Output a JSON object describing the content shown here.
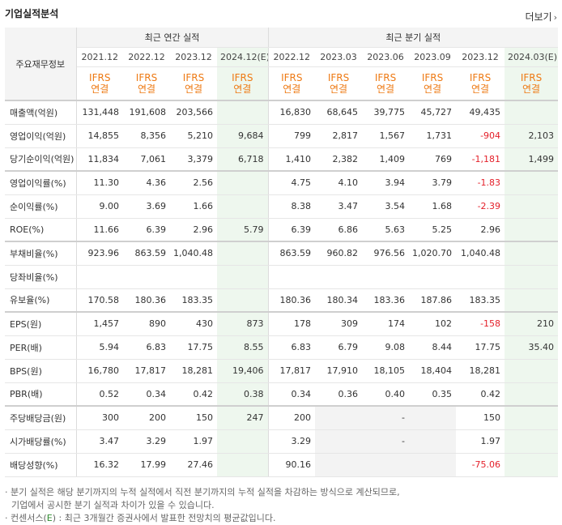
{
  "header": {
    "title": "기업실적분석",
    "more_label": "더보기"
  },
  "table": {
    "label_header": "주요재무정보",
    "annual_group": "최근 연간 실적",
    "quarter_group": "최근 분기 실적",
    "annual_periods": [
      "2021.12",
      "2022.12",
      "2023.12",
      "2024.12(E)"
    ],
    "quarter_periods": [
      "2022.12",
      "2023.03",
      "2023.06",
      "2023.09",
      "2023.12",
      "2024.03(E)"
    ],
    "basis_top": "IFRS",
    "basis_bottom": "연결",
    "rows": [
      {
        "label": "매출액(억원)",
        "a": [
          "131,448",
          "191,608",
          "203,566",
          ""
        ],
        "q": [
          "16,830",
          "68,645",
          "39,775",
          "45,727",
          "49,435",
          ""
        ]
      },
      {
        "label": "영업이익(억원)",
        "a": [
          "14,855",
          "8,356",
          "5,210",
          "9,684"
        ],
        "q": [
          "799",
          "2,817",
          "1,567",
          "1,731",
          "-904",
          "2,103"
        ]
      },
      {
        "label": "당기순이익(억원)",
        "a": [
          "11,834",
          "7,061",
          "3,379",
          "6,718"
        ],
        "q": [
          "1,410",
          "2,382",
          "1,409",
          "769",
          "-1,181",
          "1,499"
        ]
      },
      {
        "label": "영업이익률(%)",
        "a": [
          "11.30",
          "4.36",
          "2.56",
          ""
        ],
        "q": [
          "4.75",
          "4.10",
          "3.94",
          "3.79",
          "-1.83",
          ""
        ]
      },
      {
        "label": "순이익률(%)",
        "a": [
          "9.00",
          "3.69",
          "1.66",
          ""
        ],
        "q": [
          "8.38",
          "3.47",
          "3.54",
          "1.68",
          "-2.39",
          ""
        ]
      },
      {
        "label": "ROE(%)",
        "a": [
          "11.66",
          "6.39",
          "2.96",
          "5.79"
        ],
        "q": [
          "6.39",
          "6.86",
          "5.63",
          "5.25",
          "2.96",
          ""
        ]
      },
      {
        "label": "부채비율(%)",
        "a": [
          "923.96",
          "863.59",
          "1,040.48",
          ""
        ],
        "q": [
          "863.59",
          "960.82",
          "976.56",
          "1,020.70",
          "1,040.48",
          ""
        ]
      },
      {
        "label": "당좌비율(%)",
        "a": [
          "",
          "",
          "",
          ""
        ],
        "q": [
          "",
          "",
          "",
          "",
          "",
          ""
        ]
      },
      {
        "label": "유보율(%)",
        "a": [
          "170.58",
          "180.36",
          "183.35",
          ""
        ],
        "q": [
          "180.36",
          "180.34",
          "183.36",
          "187.86",
          "183.35",
          ""
        ]
      },
      {
        "label": "EPS(원)",
        "a": [
          "1,457",
          "890",
          "430",
          "873"
        ],
        "q": [
          "178",
          "309",
          "174",
          "102",
          "-158",
          "210"
        ]
      },
      {
        "label": "PER(배)",
        "a": [
          "5.94",
          "6.83",
          "17.75",
          "8.55"
        ],
        "q": [
          "6.83",
          "6.79",
          "9.08",
          "8.44",
          "17.75",
          "35.40"
        ]
      },
      {
        "label": "BPS(원)",
        "a": [
          "16,780",
          "17,817",
          "18,281",
          "19,406"
        ],
        "q": [
          "17,817",
          "17,910",
          "18,105",
          "18,404",
          "18,281",
          ""
        ]
      },
      {
        "label": "PBR(배)",
        "a": [
          "0.52",
          "0.34",
          "0.42",
          "0.38"
        ],
        "q": [
          "0.34",
          "0.36",
          "0.40",
          "0.35",
          "0.42",
          ""
        ]
      },
      {
        "label": "주당배당금(원)",
        "a": [
          "300",
          "200",
          "150",
          "247"
        ],
        "q": [
          "200",
          "",
          "-",
          "",
          "150",
          ""
        ]
      },
      {
        "label": "시가배당률(%)",
        "a": [
          "3.47",
          "3.29",
          "1.97",
          ""
        ],
        "q": [
          "3.29",
          "",
          "-",
          "",
          "1.97",
          ""
        ]
      },
      {
        "label": "배당성향(%)",
        "a": [
          "16.32",
          "17.99",
          "27.46",
          ""
        ],
        "q": [
          "90.16",
          "",
          "",
          "",
          "-75.06",
          ""
        ]
      }
    ]
  },
  "notes": {
    "line1": "· 분기 실적은 해당 분기까지의 누적 실적에서 직전 분기까지의 누적 실적을 차감하는 방식으로 계산되므로,",
    "line2": "기업에서 공시한 분기 실적과 차이가 있을 수 있습니다.",
    "line3_prefix": "· 컨센서스(",
    "line3_e": "E",
    "line3_suffix": ") : 최근 3개월간 증권사에서 발표한 전망치의 평균값입니다."
  },
  "colors": {
    "accent_orange": "#ee7a14",
    "negative_red": "#e4202a",
    "estimate_green_bg": "#f2f9f2"
  }
}
